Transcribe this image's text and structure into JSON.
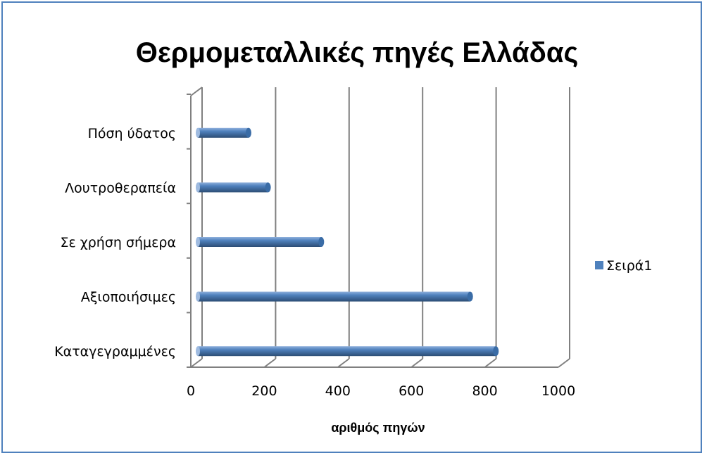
{
  "chart_data": {
    "type": "bar",
    "orientation": "horizontal",
    "style": "3d-cylinder",
    "title": "Θερμομεταλλικές πηγές Ελλάδας",
    "xlabel": "αριθμός πηγών",
    "ylabel": "",
    "categories": [
      "Καταγεγραμμένες",
      "Αξιοποιήσιμες",
      "Σε χρήση σήμερα",
      "Λουτροθεραπεία",
      "Πόση ύδατος"
    ],
    "series": [
      {
        "name": "Σειρά1",
        "values": [
          830,
          760,
          355,
          210,
          157
        ],
        "color": "#4f81bd"
      }
    ],
    "xlim": [
      0,
      1000
    ],
    "x_ticks": [
      "0",
      "200",
      "400",
      "600",
      "800",
      "1000"
    ],
    "grid": true,
    "legend_position": "right"
  },
  "colors": {
    "border": "#4f81bd",
    "bar_fill": "#4f81bd",
    "bar_dark": "#2c4d75",
    "gridline": "#808080"
  }
}
